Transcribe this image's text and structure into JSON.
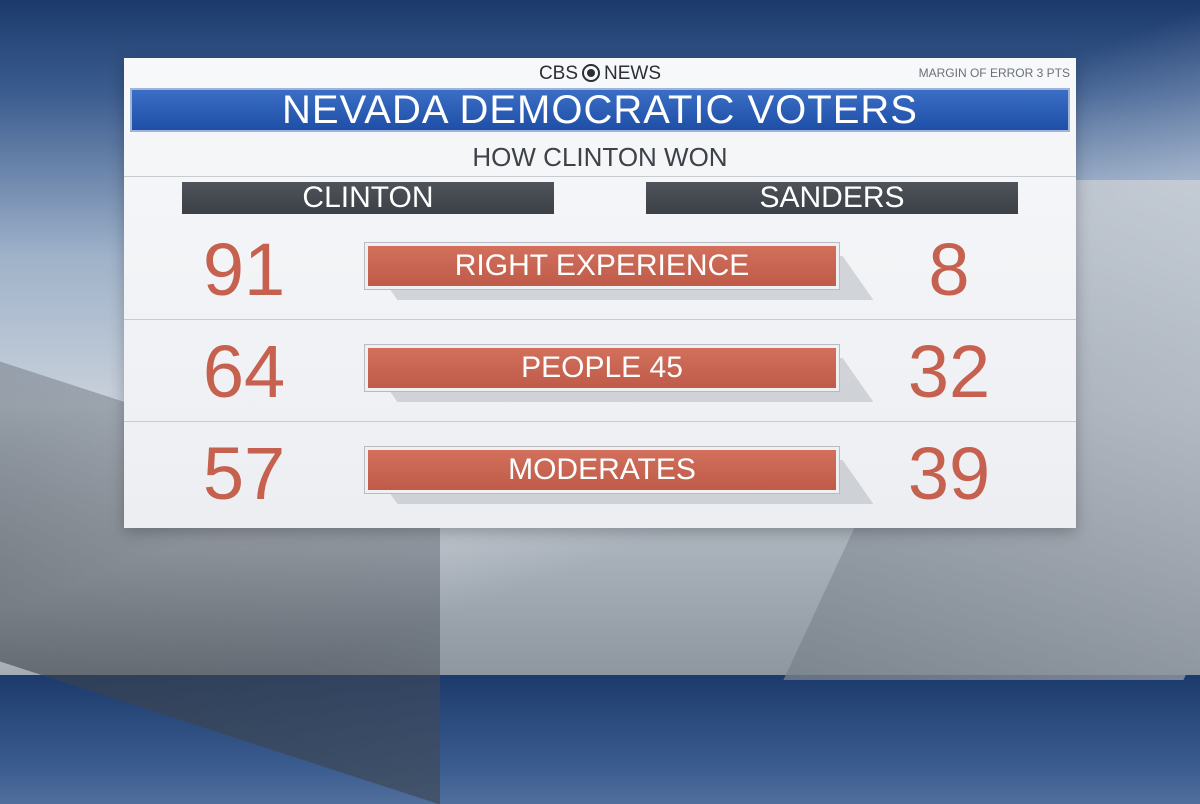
{
  "header": {
    "logo_left": "CBS",
    "logo_right": "NEWS",
    "margin_of_error": "MARGIN OF ERROR 3 PTS",
    "title": "NEVADA DEMOCRATIC VOTERS",
    "subtitle": "HOW CLINTON WON"
  },
  "candidates": {
    "left": "CLINTON",
    "right": "SANDERS"
  },
  "rows": [
    {
      "label": "RIGHT EXPERIENCE",
      "clinton": "91",
      "sanders": "8"
    },
    {
      "label": "PEOPLE 45",
      "clinton": "64",
      "sanders": "32"
    },
    {
      "label": "MODERATES",
      "clinton": "57",
      "sanders": "39"
    }
  ],
  "colors": {
    "title_bar": "#1f4fa8",
    "number": "#c6604f",
    "label_bar": "#c6604f",
    "candidate_bar": "#43484f"
  }
}
